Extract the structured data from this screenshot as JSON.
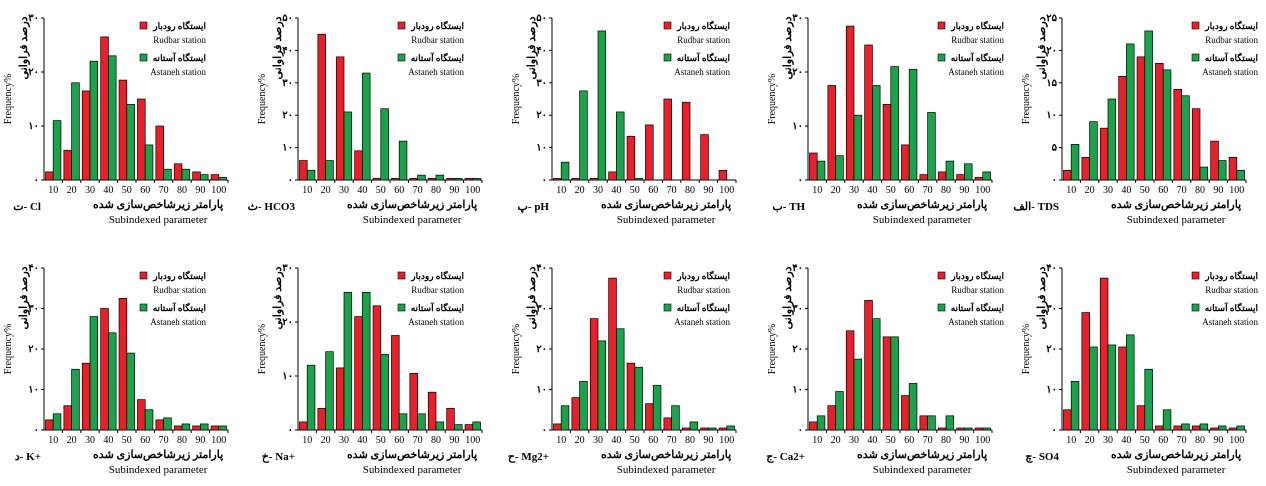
{
  "colors": {
    "red": "#e8202a",
    "green": "#1aa34a",
    "stroke": "#000000"
  },
  "common": {
    "categories": [
      "10",
      "20",
      "30",
      "40",
      "50",
      "60",
      "70",
      "80",
      "90",
      "100"
    ],
    "xlabel_fa": "پارامتر زیرشاخص‌سازی شده",
    "xlabel_en": "Subindexed parameter",
    "ylabel_fa": "درصد فراوانی",
    "ylabel_en": "Frequency%",
    "legend": [
      {
        "fa": "ایستگاه رودبار",
        "en": "Rudbar station"
      },
      {
        "fa": "ایستگاه آستانه",
        "en": "Astaneh station"
      }
    ]
  },
  "chart_data": [
    {
      "type": "bar",
      "panel_label": "ت- Cl",
      "ymax": 30,
      "yticks": [
        "۰",
        "۱۰",
        "۲۰",
        "۳۰"
      ],
      "series": [
        {
          "name": "ایستگاه رودبار",
          "values": [
            1.5,
            5.5,
            16.5,
            26.5,
            18.5,
            15,
            10,
            3,
            1.5,
            1
          ]
        },
        {
          "name": "ایستگاه آستانه",
          "values": [
            11,
            18,
            22,
            23,
            14,
            6.5,
            2,
            2,
            1,
            0.5
          ]
        }
      ]
    },
    {
      "type": "bar",
      "panel_label": "ث- HCO3",
      "ymax": 50,
      "yticks": [
        "۰",
        "۱۰",
        "۲۰",
        "۳۰",
        "۴۰",
        "۵۰"
      ],
      "series": [
        {
          "name": "ایستگاه رودبار",
          "values": [
            6,
            45,
            38,
            9,
            0.5,
            0.5,
            0.5,
            0.5,
            0.5,
            0.5
          ]
        },
        {
          "name": "ایستگاه آستانه",
          "values": [
            3,
            6,
            21,
            33,
            22,
            12,
            1.5,
            1.5,
            0.5,
            0.5
          ]
        }
      ]
    },
    {
      "type": "bar",
      "panel_label": "پ- pH",
      "ymax": 50,
      "yticks": [
        "۰",
        "۱۰",
        "۲۰",
        "۳۰",
        "۴۰",
        "۵۰"
      ],
      "series": [
        {
          "name": "ایستگاه رودبار",
          "values": [
            0.5,
            0.5,
            0.5,
            2.5,
            13.5,
            17,
            25,
            24,
            14,
            3
          ]
        },
        {
          "name": "ایستگاه آستانه",
          "values": [
            5.5,
            27.5,
            46,
            21,
            0.5,
            0,
            0,
            0,
            0,
            0
          ]
        }
      ]
    },
    {
      "type": "bar",
      "panel_label": "ب- TH",
      "ymax": 30,
      "yticks": [
        "۰",
        "۱۰",
        "۲۰",
        "۳۰"
      ],
      "series": [
        {
          "name": "ایستگاه رودبار",
          "values": [
            5,
            17.5,
            28.5,
            25,
            14,
            6.5,
            1,
            1.5,
            1,
            0.5
          ]
        },
        {
          "name": "ایستگاه آستانه",
          "values": [
            3.5,
            4.5,
            12,
            17.5,
            21,
            20.5,
            12.5,
            3.5,
            3,
            1.5
          ]
        }
      ]
    },
    {
      "type": "bar",
      "panel_label": "الف- TDS",
      "ymax": 25,
      "yticks": [
        "۰",
        "۵",
        "۱۰",
        "۱۵",
        "۲۰",
        "۲۵"
      ],
      "series": [
        {
          "name": "ایستگاه رودبار",
          "values": [
            1.5,
            3.5,
            8,
            16,
            19,
            18,
            14,
            11,
            6,
            3.5
          ]
        },
        {
          "name": "ایستگاه آستانه",
          "values": [
            5.5,
            9,
            12.5,
            21,
            23,
            17,
            13,
            2,
            3,
            1.5
          ]
        }
      ]
    },
    {
      "type": "bar",
      "panel_label": "د- K+",
      "ymax": 40,
      "yticks": [
        "۰",
        "۱۰",
        "۲۰",
        "۳۰",
        "۴۰"
      ],
      "series": [
        {
          "name": "ایستگاه رودبار",
          "values": [
            2.5,
            6,
            16.5,
            30,
            32.5,
            7.5,
            2.5,
            1,
            1,
            1
          ]
        },
        {
          "name": "ایستگاه آستانه",
          "values": [
            4,
            15,
            28,
            24,
            19,
            5,
            3,
            1.5,
            1.5,
            1
          ]
        }
      ]
    },
    {
      "type": "bar",
      "panel_label": "خ- Na+",
      "ymax": 30,
      "yticks": [
        "۰",
        "۱۰",
        "۲۰",
        "۳۰"
      ],
      "series": [
        {
          "name": "ایستگاه رودبار",
          "values": [
            1.5,
            4,
            11.5,
            21,
            23,
            17.5,
            10.5,
            7,
            4,
            1
          ]
        },
        {
          "name": "ایستگاه آستانه",
          "values": [
            12,
            14.5,
            25.5,
            25.5,
            14,
            3,
            3,
            1.5,
            1,
            1.5
          ]
        }
      ]
    },
    {
      "type": "bar",
      "panel_label": "ح- Mg2+",
      "ymax": 40,
      "yticks": [
        "۰",
        "۱۰",
        "۲۰",
        "۳۰",
        "۴۰"
      ],
      "series": [
        {
          "name": "ایستگاه رودبار",
          "values": [
            1.5,
            8,
            27.5,
            37.5,
            16.5,
            6.5,
            3,
            0.5,
            0.5,
            0.5
          ]
        },
        {
          "name": "ایستگاه آستانه",
          "values": [
            6,
            12,
            22,
            25,
            15.5,
            11,
            6,
            2,
            0.5,
            1
          ]
        }
      ]
    },
    {
      "type": "bar",
      "panel_label": "ج- Ca2+",
      "ymax": 40,
      "yticks": [
        "۰",
        "۱۰",
        "۲۰",
        "۳۰",
        "۴۰"
      ],
      "series": [
        {
          "name": "ایستگاه رودبار",
          "values": [
            2,
            6,
            24.5,
            32,
            23,
            8.5,
            3.5,
            0.5,
            0.5,
            0.5
          ]
        },
        {
          "name": "ایستگاه آستانه",
          "values": [
            3.5,
            9.5,
            17.5,
            27.5,
            23,
            11.5,
            3.5,
            3.5,
            0.5,
            0.5
          ]
        }
      ]
    },
    {
      "type": "bar",
      "panel_label": "چ- SO4",
      "ymax": 40,
      "yticks": [
        "۰",
        "۱۰",
        "۲۰",
        "۳۰",
        "۴۰"
      ],
      "series": [
        {
          "name": "ایستگاه رودبار",
          "values": [
            5,
            29,
            37.5,
            20.5,
            6,
            1,
            1,
            1,
            0.5,
            0.5
          ]
        },
        {
          "name": "ایستگاه آستانه",
          "values": [
            12,
            20.5,
            21,
            23.5,
            15,
            5,
            1.5,
            1.5,
            1,
            1
          ]
        }
      ]
    }
  ]
}
